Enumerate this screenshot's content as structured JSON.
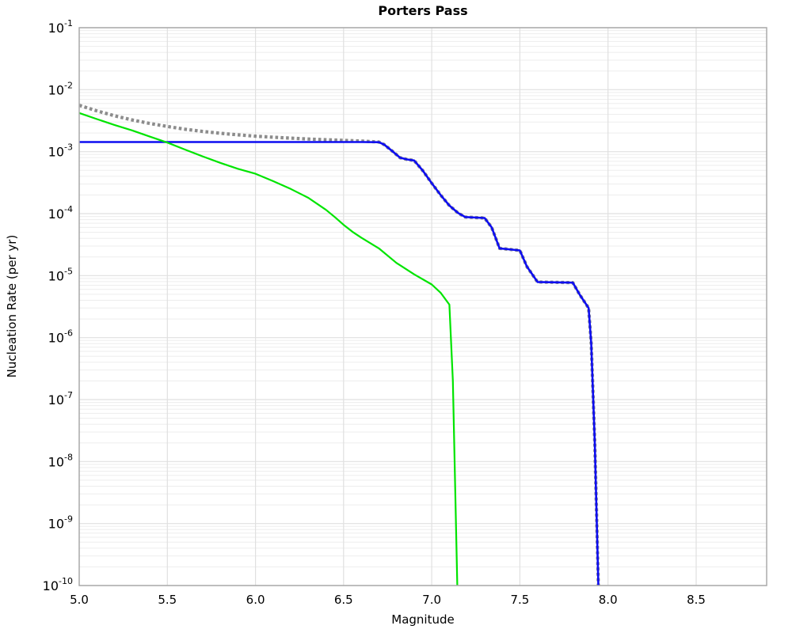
{
  "title": "Porters Pass",
  "axes": {
    "xlabel": "Magnitude",
    "ylabel": "Nucleation Rate (per yr)",
    "x_tick_labels": [
      "5.0",
      "5.5",
      "6.0",
      "6.5",
      "7.0",
      "7.5",
      "8.0",
      "8.5"
    ],
    "x_tick_values": [
      5.0,
      5.5,
      6.0,
      6.5,
      7.0,
      7.5,
      8.0,
      8.5
    ],
    "y_tick_base": "10",
    "y_tick_exponents": [
      "-1",
      "-2",
      "-3",
      "-4",
      "-5",
      "-6",
      "-7",
      "-8",
      "-9",
      "-10"
    ]
  },
  "colors": {
    "grid_major": "#e0e0e0",
    "grid_minor": "#ededed",
    "spine": "#aaaaaa",
    "background": "#ffffff",
    "text": "#000000"
  },
  "chart_data": {
    "type": "line",
    "title": "Porters Pass",
    "xlabel": "Magnitude",
    "ylabel": "Nucleation Rate (per yr)",
    "x_scale": "linear",
    "y_scale": "log",
    "xlim": [
      5.0,
      8.9
    ],
    "ylim": [
      1e-10,
      0.1
    ],
    "grid": true,
    "legend_position": "none",
    "series": [
      {
        "name": "target-mfd-dotted-gray",
        "style": "dotted",
        "color": "#8c8c8c",
        "width": 4.2,
        "points": [
          [
            5.0,
            0.0056
          ],
          [
            5.1,
            0.00455
          ],
          [
            5.2,
            0.0038
          ],
          [
            5.3,
            0.00325
          ],
          [
            5.4,
            0.00285
          ],
          [
            5.5,
            0.00255
          ],
          [
            5.6,
            0.0023
          ],
          [
            5.7,
            0.00212
          ],
          [
            5.8,
            0.00198
          ],
          [
            5.9,
            0.00187
          ],
          [
            6.0,
            0.00178
          ],
          [
            6.1,
            0.00171
          ],
          [
            6.2,
            0.00165
          ],
          [
            6.3,
            0.0016
          ],
          [
            6.4,
            0.001555
          ],
          [
            6.5,
            0.00152
          ],
          [
            6.6,
            0.001485
          ],
          [
            6.7,
            0.00143
          ],
          [
            6.73,
            0.0013
          ],
          [
            6.78,
            0.001
          ],
          [
            6.82,
            0.0008
          ],
          [
            6.86,
            0.00075
          ],
          [
            6.9,
            0.00072
          ],
          [
            6.95,
            0.00049
          ],
          [
            7.0,
            0.00031
          ],
          [
            7.05,
            0.0002
          ],
          [
            7.1,
            0.000135
          ],
          [
            7.15,
            0.000102
          ],
          [
            7.19,
            8.8e-05
          ],
          [
            7.3,
            8.5e-05
          ],
          [
            7.34,
            6e-05
          ],
          [
            7.385,
            2.75e-05
          ],
          [
            7.5,
            2.55e-05
          ],
          [
            7.54,
            1.4e-05
          ],
          [
            7.6,
            7.9e-06
          ],
          [
            7.8,
            7.7e-06
          ],
          [
            7.84,
            4.9e-06
          ],
          [
            7.89,
            3e-06
          ],
          [
            7.905,
            8e-07
          ],
          [
            7.925,
            2e-08
          ],
          [
            7.945,
            1e-10
          ]
        ]
      },
      {
        "name": "solution-mfd-solid-blue",
        "style": "solid",
        "color": "#0d0df0",
        "width": 2.6,
        "points": [
          [
            5.0,
            0.00143
          ],
          [
            6.6,
            0.00143
          ],
          [
            6.7,
            0.00142
          ],
          [
            6.73,
            0.0013
          ],
          [
            6.78,
            0.001
          ],
          [
            6.82,
            0.0008
          ],
          [
            6.86,
            0.00075
          ],
          [
            6.9,
            0.00072
          ],
          [
            6.95,
            0.00049
          ],
          [
            7.0,
            0.00031
          ],
          [
            7.05,
            0.0002
          ],
          [
            7.1,
            0.000135
          ],
          [
            7.15,
            0.000102
          ],
          [
            7.19,
            8.8e-05
          ],
          [
            7.3,
            8.5e-05
          ],
          [
            7.34,
            6e-05
          ],
          [
            7.385,
            2.75e-05
          ],
          [
            7.5,
            2.55e-05
          ],
          [
            7.54,
            1.4e-05
          ],
          [
            7.6,
            7.9e-06
          ],
          [
            7.8,
            7.7e-06
          ],
          [
            7.84,
            4.9e-06
          ],
          [
            7.89,
            3e-06
          ],
          [
            7.905,
            8e-07
          ],
          [
            7.925,
            2e-08
          ],
          [
            7.945,
            1e-10
          ]
        ]
      },
      {
        "name": "comparison-mfd-solid-green",
        "style": "solid",
        "color": "#00e400",
        "width": 2.2,
        "points": [
          [
            5.0,
            0.0042
          ],
          [
            5.1,
            0.00335
          ],
          [
            5.2,
            0.0027
          ],
          [
            5.3,
            0.0022
          ],
          [
            5.4,
            0.00175
          ],
          [
            5.5,
            0.0014
          ],
          [
            5.6,
            0.00108
          ],
          [
            5.7,
            0.00084
          ],
          [
            5.8,
            0.00066
          ],
          [
            5.9,
            0.00053
          ],
          [
            6.0,
            0.00044
          ],
          [
            6.1,
            0.000335
          ],
          [
            6.2,
            0.00025
          ],
          [
            6.3,
            0.00018
          ],
          [
            6.4,
            0.000115
          ],
          [
            6.45,
            8.8e-05
          ],
          [
            6.5,
            6.6e-05
          ],
          [
            6.55,
            5.1e-05
          ],
          [
            6.6,
            4.1e-05
          ],
          [
            6.7,
            2.75e-05
          ],
          [
            6.8,
            1.6e-05
          ],
          [
            6.9,
            1.05e-05
          ],
          [
            7.0,
            7.2e-06
          ],
          [
            7.05,
            5.3e-06
          ],
          [
            7.1,
            3.4e-06
          ],
          [
            7.12,
            2e-07
          ],
          [
            7.145,
            1e-10
          ]
        ]
      }
    ]
  }
}
